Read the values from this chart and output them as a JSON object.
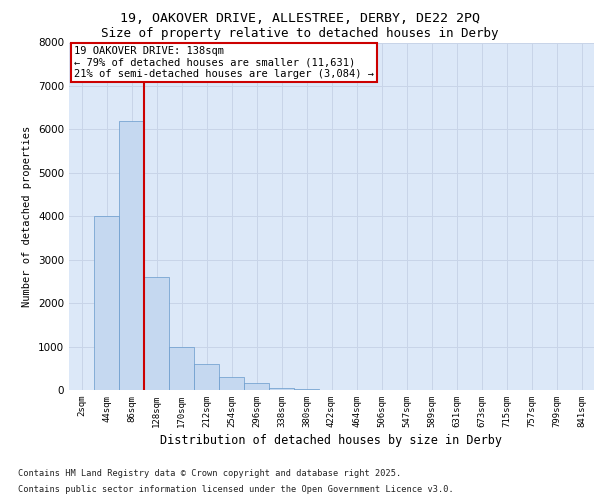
{
  "title_line1": "19, OAKOVER DRIVE, ALLESTREE, DERBY, DE22 2PQ",
  "title_line2": "Size of property relative to detached houses in Derby",
  "xlabel": "Distribution of detached houses by size in Derby",
  "ylabel": "Number of detached properties",
  "bin_labels": [
    "2sqm",
    "44sqm",
    "86sqm",
    "128sqm",
    "170sqm",
    "212sqm",
    "254sqm",
    "296sqm",
    "338sqm",
    "380sqm",
    "422sqm",
    "464sqm",
    "506sqm",
    "547sqm",
    "589sqm",
    "631sqm",
    "673sqm",
    "715sqm",
    "757sqm",
    "799sqm",
    "841sqm"
  ],
  "bar_values": [
    0,
    4000,
    6200,
    2600,
    1000,
    600,
    300,
    150,
    50,
    30,
    10,
    0,
    0,
    0,
    0,
    0,
    0,
    0,
    0,
    0,
    0
  ],
  "bar_color": "#c5d8f0",
  "bar_edge_color": "#6699cc",
  "red_line_x": 2.5,
  "ylim": [
    0,
    8000
  ],
  "yticks": [
    0,
    1000,
    2000,
    3000,
    4000,
    5000,
    6000,
    7000,
    8000
  ],
  "annotation_title": "19 OAKOVER DRIVE: 138sqm",
  "annotation_line1": "← 79% of detached houses are smaller (11,631)",
  "annotation_line2": "21% of semi-detached houses are larger (3,084) →",
  "annotation_box_color": "#ffffff",
  "annotation_box_edge": "#cc0000",
  "red_line_color": "#cc0000",
  "grid_color": "#c8d4e8",
  "bg_color": "#dce8f8",
  "footnote1": "Contains HM Land Registry data © Crown copyright and database right 2025.",
  "footnote2": "Contains public sector information licensed under the Open Government Licence v3.0."
}
